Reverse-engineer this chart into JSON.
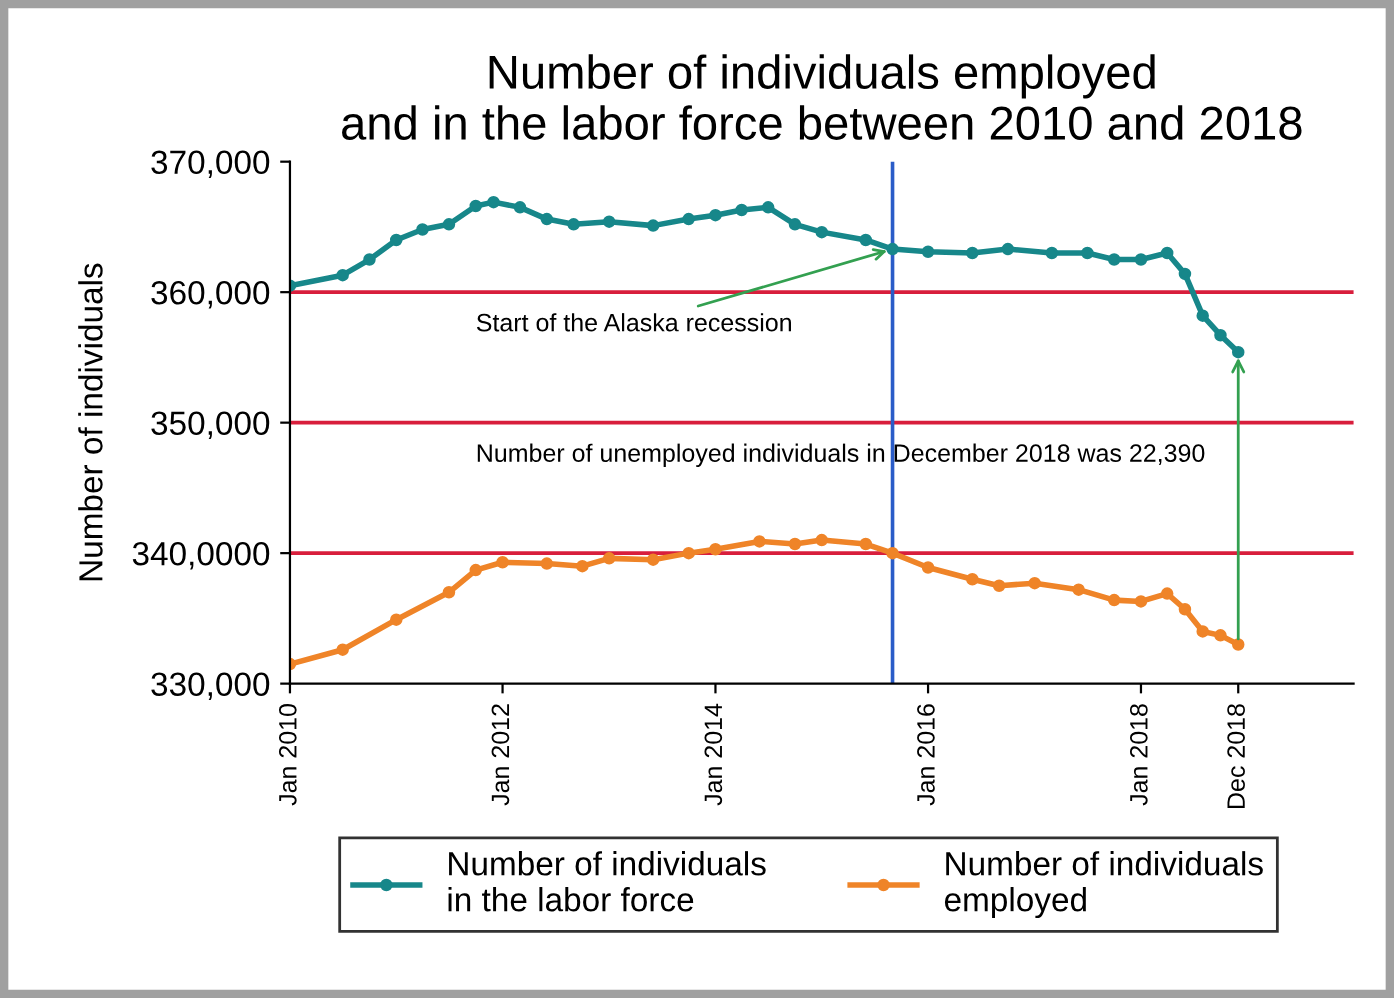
{
  "chart_data": {
    "type": "line",
    "title": "Number of individuals employed\nand in the labor force between 2010 and 2018",
    "ylabel": "Number of individuals",
    "series": [
      {
        "name": "Number of individuals\nin the labor force",
        "color": "#17878a",
        "x": [
          "2010-01",
          "2010-07",
          "2010-10",
          "2011-01",
          "2011-04",
          "2011-07",
          "2011-10",
          "2011-12",
          "2012-03",
          "2012-06",
          "2012-09",
          "2013-01",
          "2013-06",
          "2013-10",
          "2014-01",
          "2014-04",
          "2014-07",
          "2014-10",
          "2015-01",
          "2015-06",
          "2015-09",
          "2016-01",
          "2016-06",
          "2016-10",
          "2017-03",
          "2017-07",
          "2017-10",
          "2018-01",
          "2018-04",
          "2018-06",
          "2018-08",
          "2018-10",
          "2018-12"
        ],
        "values": [
          360500,
          361300,
          362500,
          364000,
          364800,
          365200,
          366600,
          366900,
          366500,
          365600,
          365200,
          365400,
          365100,
          365600,
          365900,
          366300,
          366500,
          365200,
          364600,
          364000,
          363300,
          363100,
          363000,
          363300,
          363000,
          363000,
          362500,
          362500,
          363000,
          361400,
          358200,
          356700,
          355400
        ]
      },
      {
        "name": "Number of individuals\nemployed",
        "color": "#ef8428",
        "x": [
          "2010-01",
          "2010-07",
          "2011-01",
          "2011-07",
          "2011-10",
          "2012-01",
          "2012-06",
          "2012-10",
          "2013-01",
          "2013-06",
          "2013-10",
          "2014-01",
          "2014-06",
          "2014-10",
          "2015-01",
          "2015-06",
          "2015-09",
          "2016-01",
          "2016-06",
          "2016-09",
          "2017-01",
          "2017-06",
          "2017-10",
          "2018-01",
          "2018-04",
          "2018-06",
          "2018-08",
          "2018-10",
          "2018-12"
        ],
        "values": [
          331500,
          332600,
          334900,
          337000,
          338700,
          339300,
          339200,
          339000,
          339600,
          339500,
          340000,
          340300,
          340900,
          340700,
          341000,
          340700,
          340000,
          338900,
          338000,
          337500,
          337700,
          337200,
          336400,
          336300,
          336900,
          335700,
          334000,
          333700,
          333000
        ]
      }
    ],
    "xlim": [
      "2010-01",
      "2020-01"
    ],
    "xticks": [
      {
        "value": "2010-01",
        "label": "Jan 2010"
      },
      {
        "value": "2012-01",
        "label": "Jan 2012"
      },
      {
        "value": "2014-01",
        "label": "Jan 2014"
      },
      {
        "value": "2016-01",
        "label": "Jan 2016"
      },
      {
        "value": "2018-01",
        "label": "Jan 2018"
      },
      {
        "value": "2018-12",
        "label": "Dec 2018"
      }
    ],
    "ylim": [
      330000,
      370000
    ],
    "yticks": [
      {
        "value": 330000,
        "label": "330,000"
      },
      {
        "value": 340000,
        "label": "340,0000"
      },
      {
        "value": 350000,
        "label": "350,000"
      },
      {
        "value": 360000,
        "label": "360,000"
      },
      {
        "value": 370000,
        "label": "370,000"
      }
    ],
    "ref_lines": [
      {
        "axis": "y",
        "value": 360000,
        "color": "#d81e3c"
      },
      {
        "axis": "y",
        "value": 350000,
        "color": "#d81e3c"
      },
      {
        "axis": "y",
        "value": 340000,
        "color": "#d81e3c"
      },
      {
        "axis": "x",
        "value": "2015-09",
        "color": "#2a5cc8"
      }
    ],
    "annotations": [
      {
        "text": "Start of the Alaska recession",
        "x": "2015-09",
        "y": 363300
      },
      "Number of unemployed individuals in December 2018 was 22,390"
    ],
    "marker": "circle",
    "line_style": "solid",
    "grid": false,
    "legend": "bottom"
  }
}
